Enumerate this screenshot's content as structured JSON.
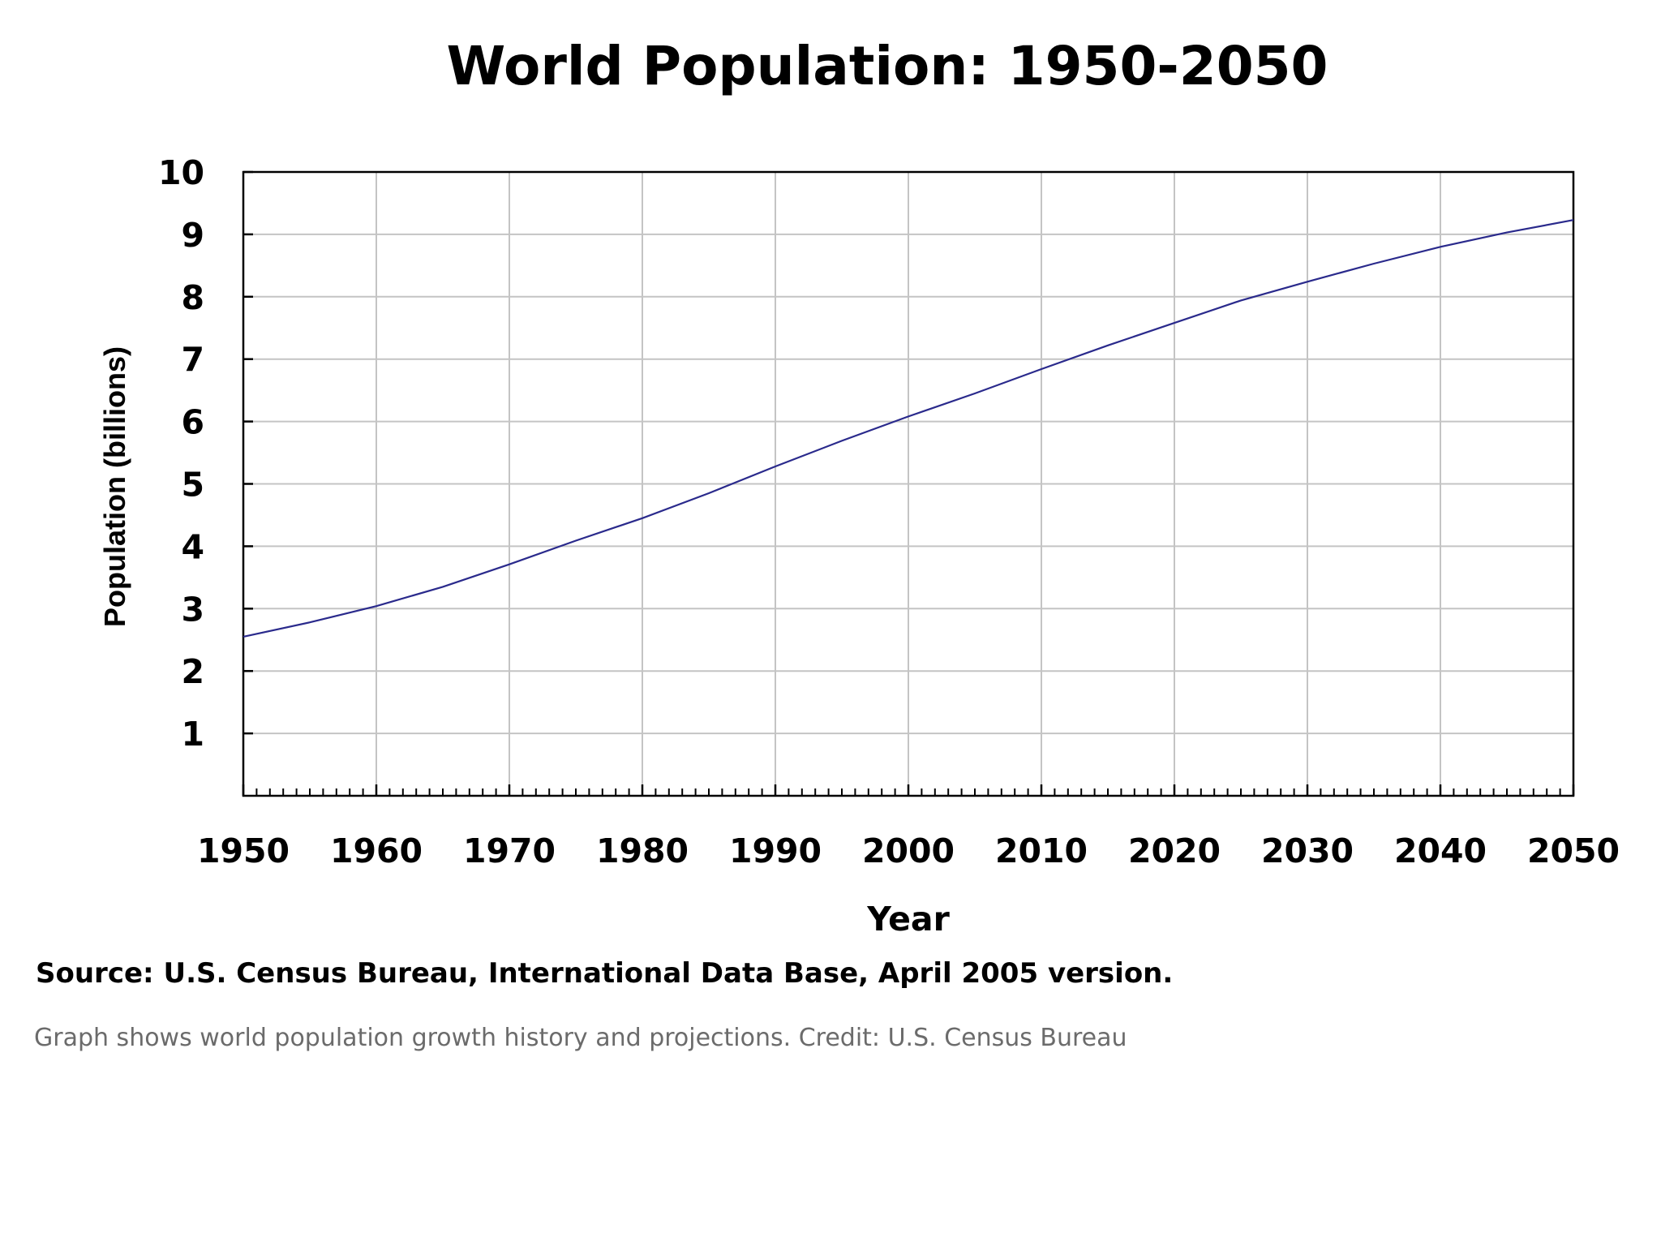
{
  "chart_data": {
    "type": "line",
    "title": "World Population: 1950-2050",
    "xlabel": "Year",
    "ylabel": "Population (billions)",
    "xlim": [
      1950,
      2050
    ],
    "ylim": [
      0,
      10
    ],
    "x_ticks": [
      "1950",
      "1960",
      "1970",
      "1980",
      "1990",
      "2000",
      "2010",
      "2020",
      "2030",
      "2040",
      "2050"
    ],
    "y_ticks": [
      "1",
      "2",
      "3",
      "4",
      "5",
      "6",
      "7",
      "8",
      "9",
      "10"
    ],
    "grid": true,
    "series_color": "#2a2a8c",
    "series": [
      {
        "x": [
          1950,
          1955,
          1960,
          1965,
          1970,
          1975,
          1980,
          1985,
          1990,
          1995,
          2000,
          2005,
          2010,
          2015,
          2020,
          2025,
          2030,
          2035,
          2040,
          2045,
          2050
        ],
        "values": [
          2.55,
          2.78,
          3.04,
          3.35,
          3.71,
          4.09,
          4.45,
          4.85,
          5.28,
          5.69,
          6.08,
          6.45,
          6.84,
          7.22,
          7.58,
          7.94,
          8.24,
          8.53,
          8.8,
          9.03,
          9.23
        ]
      }
    ]
  },
  "source_note": "Source: U.S. Census Bureau, International Data Base, April 2005 version.",
  "caption": "Graph shows world population growth history and projections. Credit: U.S. Census Bureau"
}
